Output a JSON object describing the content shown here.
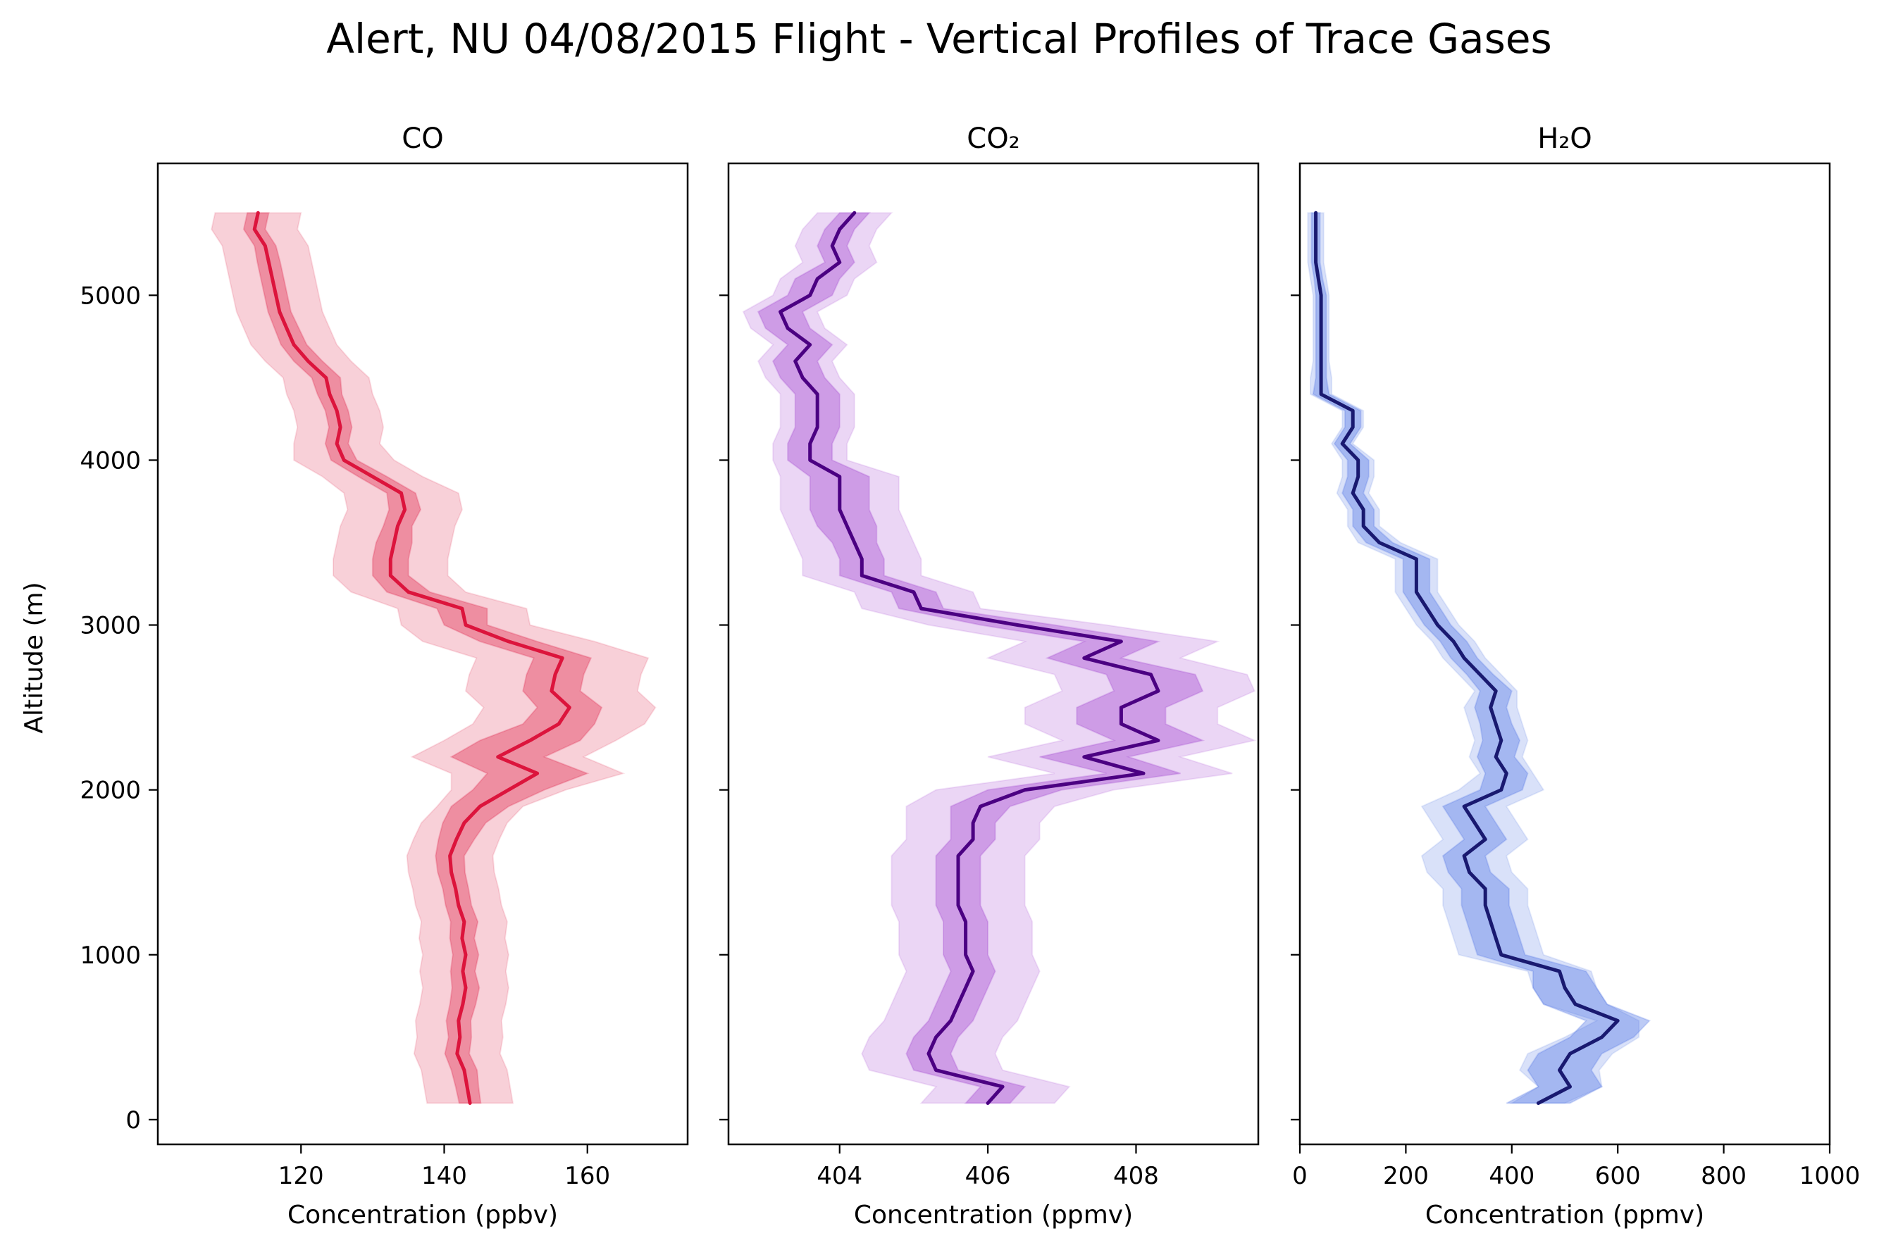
{
  "figure": {
    "title": "Alert, NU 04/08/2015 Flight - Vertical Profiles of Trace Gases",
    "ylabel": "Altitude (m)",
    "yticks": [
      0,
      1000,
      2000,
      3000,
      4000,
      5000
    ]
  },
  "chart_data": [
    {
      "type": "line",
      "title": "CO",
      "xlabel": "Concentration (ppbv)",
      "ylabel": "Altitude (m)",
      "xlim": [
        100,
        174
      ],
      "ylim": [
        -150,
        5800
      ],
      "xticks": [
        120,
        140,
        160
      ],
      "colors": {
        "line": "#dc143c",
        "band": "#dc143c"
      },
      "altitude": [
        100,
        200,
        300,
        400,
        500,
        600,
        700,
        800,
        900,
        1000,
        1100,
        1200,
        1300,
        1400,
        1500,
        1600,
        1700,
        1800,
        1900,
        2000,
        2100,
        2200,
        2300,
        2400,
        2500,
        2600,
        2700,
        2800,
        2900,
        3000,
        3100,
        3200,
        3300,
        3400,
        3500,
        3600,
        3700,
        3800,
        3900,
        4000,
        4100,
        4200,
        4300,
        4400,
        4500,
        4600,
        4700,
        4800,
        4900,
        5000,
        5100,
        5200,
        5300,
        5400,
        5500
      ],
      "mean": [
        143.6,
        143.2,
        142.8,
        141.8,
        142.2,
        142.0,
        142.6,
        143.0,
        142.6,
        143.0,
        142.5,
        142.8,
        142.0,
        141.6,
        141.0,
        140.8,
        141.7,
        142.8,
        145.0,
        149.0,
        153.0,
        147.5,
        152.0,
        156.0,
        157.5,
        155.0,
        155.5,
        156.5,
        149.0,
        143.0,
        142.5,
        135.0,
        132.5,
        132.5,
        133.0,
        133.5,
        134.5,
        134.0,
        130.0,
        126.0,
        125.0,
        125.5,
        125.0,
        124.0,
        123.5,
        121.0,
        119.0,
        118.0,
        117.0,
        116.5,
        116.0,
        115.5,
        115.0,
        113.5,
        114.0
      ],
      "std_inner": [
        1.5,
        1.6,
        1.8,
        1.7,
        1.6,
        1.7,
        1.8,
        1.9,
        1.7,
        1.8,
        1.7,
        1.9,
        1.8,
        1.8,
        1.9,
        2.0,
        2.5,
        3.0,
        4.0,
        5.0,
        7.0,
        6.5,
        7.0,
        5.0,
        4.5,
        4.0,
        4.0,
        4.0,
        4.0,
        3.0,
        3.5,
        3.0,
        2.5,
        2.5,
        2.5,
        2.0,
        2.2,
        2.0,
        2.0,
        1.8,
        1.6,
        1.6,
        1.6,
        1.7,
        2.0,
        2.0,
        1.8,
        1.7,
        1.6,
        1.6,
        1.6,
        1.6,
        1.5,
        1.5,
        1.5
      ],
      "std_outer": [
        6.0,
        6.0,
        6.0,
        6.0,
        6.0,
        6.0,
        6.0,
        6.0,
        6.0,
        6.0,
        6.0,
        6.0,
        6.0,
        6.0,
        6.0,
        6.0,
        6.0,
        6.0,
        6.0,
        8.0,
        12.0,
        12.0,
        12.0,
        12.0,
        12.0,
        12.0,
        12.0,
        12.0,
        12.0,
        9.0,
        9.0,
        8.0,
        8.0,
        8.0,
        8.0,
        8.0,
        8.0,
        8.0,
        7.0,
        7.0,
        6.0,
        6.0,
        6.0,
        6.0,
        6.0,
        6.0,
        6.0,
        6.0,
        6.0,
        6.0,
        6.0,
        6.0,
        6.0,
        6.0,
        6.0
      ]
    },
    {
      "type": "line",
      "title": "CO₂",
      "xlabel": "Concentration (ppmv)",
      "ylabel": "Altitude (m)",
      "xlim": [
        402.5,
        409.65
      ],
      "ylim": [
        -150,
        5800
      ],
      "xticks": [
        404,
        406,
        408
      ],
      "colors": {
        "line": "#4b0082",
        "band": "#9932cc"
      },
      "altitude": [
        100,
        200,
        300,
        400,
        500,
        600,
        700,
        800,
        900,
        1000,
        1100,
        1200,
        1300,
        1400,
        1500,
        1600,
        1700,
        1800,
        1900,
        2000,
        2100,
        2200,
        2300,
        2400,
        2500,
        2600,
        2700,
        2800,
        2900,
        3000,
        3100,
        3200,
        3300,
        3400,
        3500,
        3600,
        3700,
        3800,
        3900,
        4000,
        4100,
        4200,
        4300,
        4400,
        4500,
        4600,
        4700,
        4800,
        4900,
        5000,
        5100,
        5200,
        5300,
        5400,
        5500
      ],
      "mean": [
        406.0,
        406.2,
        405.3,
        405.2,
        405.3,
        405.5,
        405.6,
        405.7,
        405.8,
        405.7,
        405.7,
        405.7,
        405.6,
        405.6,
        405.6,
        405.6,
        405.8,
        405.8,
        405.9,
        406.5,
        408.1,
        407.3,
        408.3,
        407.8,
        407.8,
        408.3,
        408.2,
        407.3,
        407.8,
        406.4,
        405.1,
        405.0,
        404.3,
        404.3,
        404.2,
        404.1,
        404.0,
        404.0,
        404.0,
        403.6,
        403.6,
        403.7,
        403.7,
        403.7,
        403.5,
        403.4,
        403.6,
        403.3,
        403.2,
        403.6,
        403.7,
        404.0,
        403.9,
        404.0,
        404.2
      ],
      "std_inner": [
        0.3,
        0.3,
        0.3,
        0.3,
        0.3,
        0.3,
        0.3,
        0.3,
        0.3,
        0.3,
        0.3,
        0.3,
        0.3,
        0.3,
        0.3,
        0.3,
        0.3,
        0.3,
        0.4,
        0.5,
        0.5,
        0.6,
        0.6,
        0.6,
        0.6,
        0.6,
        0.6,
        0.5,
        0.5,
        0.5,
        0.3,
        0.3,
        0.3,
        0.3,
        0.3,
        0.4,
        0.4,
        0.4,
        0.4,
        0.3,
        0.3,
        0.3,
        0.3,
        0.3,
        0.3,
        0.3,
        0.3,
        0.3,
        0.3,
        0.3,
        0.3,
        0.2,
        0.2,
        0.2,
        0.2
      ],
      "std_outer": [
        0.9,
        0.9,
        0.9,
        0.9,
        0.9,
        0.9,
        0.9,
        0.9,
        0.9,
        0.9,
        0.9,
        0.9,
        0.9,
        0.9,
        0.9,
        0.9,
        0.9,
        0.9,
        1.0,
        1.2,
        1.2,
        1.3,
        1.3,
        1.3,
        1.3,
        1.3,
        1.3,
        1.3,
        1.3,
        1.2,
        0.8,
        0.8,
        0.8,
        0.8,
        0.8,
        0.8,
        0.8,
        0.8,
        0.8,
        0.5,
        0.5,
        0.5,
        0.5,
        0.5,
        0.5,
        0.5,
        0.5,
        0.5,
        0.5,
        0.5,
        0.5,
        0.5,
        0.5,
        0.5,
        0.5
      ]
    },
    {
      "type": "line",
      "title": "H₂O",
      "xlabel": "Concentration (ppmv)",
      "ylabel": "Altitude (m)",
      "xlim": [
        0,
        1000
      ],
      "ylim": [
        -150,
        5800
      ],
      "xticks": [
        0,
        200,
        400,
        600,
        800,
        1000
      ],
      "colors": {
        "line": "#191970",
        "band": "#4169e1"
      },
      "altitude": [
        100,
        200,
        300,
        400,
        500,
        600,
        700,
        800,
        900,
        1000,
        1100,
        1200,
        1300,
        1400,
        1500,
        1600,
        1700,
        1800,
        1900,
        2000,
        2100,
        2200,
        2300,
        2400,
        2500,
        2600,
        2700,
        2800,
        2900,
        3000,
        3100,
        3200,
        3300,
        3400,
        3500,
        3600,
        3700,
        3800,
        3900,
        4000,
        4100,
        4200,
        4300,
        4400,
        4500,
        4600,
        4700,
        4800,
        4900,
        5000,
        5100,
        5200,
        5300,
        5400,
        5500
      ],
      "mean": [
        450,
        510,
        490,
        510,
        570,
        600,
        520,
        500,
        490,
        380,
        370,
        360,
        350,
        350,
        320,
        310,
        350,
        330,
        310,
        380,
        390,
        370,
        380,
        370,
        360,
        370,
        340,
        310,
        290,
        260,
        240,
        220,
        220,
        220,
        150,
        120,
        120,
        100,
        110,
        110,
        80,
        100,
        100,
        40,
        40,
        40,
        40,
        40,
        40,
        40,
        35,
        30,
        30,
        30,
        30
      ],
      "std_inner": [
        60,
        60,
        60,
        60,
        60,
        60,
        60,
        60,
        50,
        45,
        45,
        45,
        45,
        45,
        40,
        40,
        40,
        40,
        40,
        40,
        40,
        35,
        35,
        30,
        30,
        30,
        25,
        25,
        25,
        25,
        25,
        25,
        25,
        25,
        25,
        20,
        20,
        20,
        20,
        20,
        15,
        15,
        15,
        15,
        10,
        10,
        10,
        10,
        10,
        10,
        8,
        8,
        8,
        8,
        8
      ],
      "std_outer": [
        50,
        60,
        75,
        80,
        70,
        40,
        60,
        60,
        60,
        80,
        80,
        80,
        80,
        80,
        80,
        80,
        80,
        80,
        80,
        80,
        50,
        50,
        50,
        50,
        50,
        40,
        40,
        40,
        40,
        40,
        40,
        40,
        40,
        40,
        40,
        30,
        30,
        30,
        30,
        30,
        20,
        20,
        20,
        20,
        20,
        15,
        15,
        15,
        15,
        15,
        15,
        15,
        15,
        15,
        15
      ]
    }
  ]
}
